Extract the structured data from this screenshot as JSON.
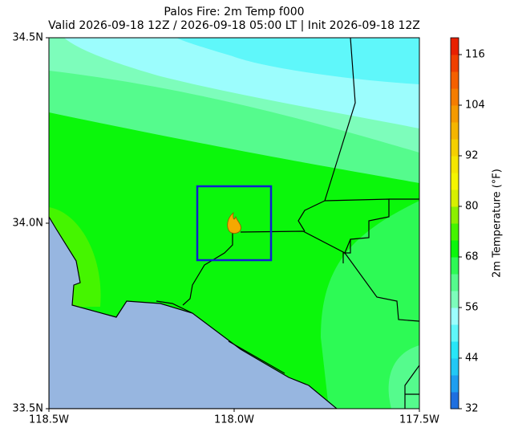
{
  "chart_data": {
    "type": "map",
    "title": "Palos Fire: 2m Temp f000",
    "subtitle": "Valid 2026-09-18 12Z / 2026-09-18 05:00 LT | Init 2026-09-18 12Z",
    "xlim": [
      -118.5,
      -117.5
    ],
    "ylim": [
      33.5,
      34.5
    ],
    "xticks": [
      {
        "value": -118.5,
        "label": "118.5W"
      },
      {
        "value": -118.0,
        "label": "118.0W"
      },
      {
        "value": -117.5,
        "label": "117.5W"
      }
    ],
    "yticks": [
      {
        "value": 33.5,
        "label": "33.5N"
      },
      {
        "value": 34.0,
        "label": "34.0N"
      },
      {
        "value": 34.5,
        "label": "34.5N"
      }
    ],
    "colorbar": {
      "label": "2m Temperature (°F)",
      "lim": [
        32,
        120
      ],
      "ticks": [
        32,
        44,
        56,
        68,
        80,
        92,
        104,
        116
      ],
      "levels": [
        32,
        36,
        40,
        44,
        48,
        52,
        56,
        60,
        64,
        68,
        72,
        76,
        80,
        84,
        88,
        92,
        96,
        100,
        104,
        108,
        112,
        116,
        120
      ],
      "colors": [
        "#1e6fe0",
        "#1e9ef0",
        "#22c8f5",
        "#27e6f8",
        "#5ff7fa",
        "#9cfdfd",
        "#7dfdbb",
        "#55fb8d",
        "#2dfa55",
        "#0bf70b",
        "#45f500",
        "#8cf000",
        "#d7f000",
        "#f5f500",
        "#f5e600",
        "#f5d000",
        "#f5b500",
        "#f59a00",
        "#f57d00",
        "#f56000",
        "#f04000",
        "#e82000"
      ]
    }
  }
}
